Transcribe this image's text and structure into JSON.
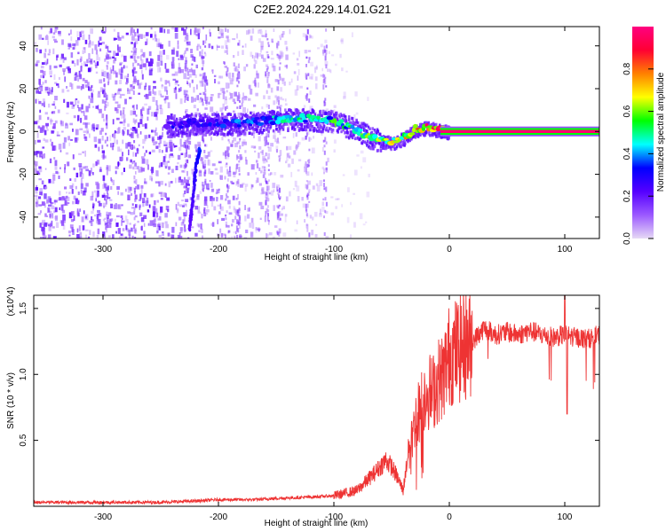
{
  "figure": {
    "title": "C2E2.2024.229.14.01.G21"
  },
  "chart_data": [
    {
      "type": "heatmap",
      "title": "C2E2.2024.229.14.01.G21",
      "xlabel": "Height of straight line (km)",
      "ylabel": "Frequency (Hz)",
      "xlim": [
        -360,
        130
      ],
      "ylim": [
        -50,
        49
      ],
      "x_ticks": [
        -300,
        -200,
        -100,
        0,
        100
      ],
      "y_ticks": [
        -40,
        -20,
        0,
        20,
        40
      ],
      "colorbar": {
        "label": "Normalized spectral amplitude",
        "range": [
          0,
          1
        ],
        "ticks": [
          "0.0",
          "0.2",
          "0.4",
          "0.6",
          "0.8"
        ],
        "tick_values": [
          0,
          0.2,
          0.4,
          0.6,
          0.8
        ],
        "colormap": [
          "#e6d9f5",
          "#9b59ff",
          "#5500ff",
          "#0000ff",
          "#00ffff",
          "#00ff00",
          "#ffff00",
          "#ff8000",
          "#ff0033",
          "#ff0080"
        ]
      },
      "noise_region_x": [
        -360,
        -100
      ],
      "signal_track": {
        "x": [
          -240,
          -220,
          -200,
          -180,
          -160,
          -140,
          -120,
          -100,
          -90,
          -80,
          -70,
          -60,
          -50,
          -40,
          -30,
          -20,
          -10,
          0,
          20,
          50,
          100,
          130
        ],
        "freq": [
          3,
          4,
          4,
          4,
          5,
          6,
          6,
          5,
          3,
          1,
          -2,
          -4,
          -5,
          -3,
          1,
          2,
          1,
          0,
          0,
          0,
          0,
          0
        ],
        "amplitude": [
          0.3,
          0.3,
          0.35,
          0.4,
          0.45,
          0.5,
          0.5,
          0.55,
          0.55,
          0.55,
          0.6,
          0.6,
          0.65,
          0.7,
          0.85,
          0.9,
          0.95,
          0.98,
          0.98,
          0.98,
          0.98,
          0.98
        ]
      },
      "descending_branch": {
        "x": [
          -225,
          -222,
          -219,
          -216
        ],
        "freq": [
          -46,
          -30,
          -15,
          -8
        ]
      }
    },
    {
      "type": "line",
      "xlabel": "Height of straight line (km)",
      "ylabel": "SNR (10 * v/v)",
      "y_multiplier": "(x10^4)",
      "xlim": [
        -360,
        130
      ],
      "ylim": [
        0,
        1.6
      ],
      "x_ticks": [
        -300,
        -200,
        -100,
        0,
        100
      ],
      "y_ticks": [
        0.5,
        1.0,
        1.5
      ],
      "y_tick_labels": [
        "0.5",
        "1.0",
        "1.5"
      ],
      "color": "#ee3333",
      "series": [
        {
          "x": [
            -360,
            -300,
            -250,
            -220,
            -200,
            -170,
            -150,
            -120,
            -100,
            -80,
            -65,
            -55,
            -50,
            -45,
            -40,
            -35,
            -30,
            -25,
            -20,
            -15,
            -10,
            -5,
            0,
            10,
            20,
            30,
            40,
            50,
            60,
            70,
            80,
            90,
            100,
            110,
            120,
            130
          ],
          "y": [
            0.03,
            0.03,
            0.03,
            0.04,
            0.05,
            0.05,
            0.06,
            0.07,
            0.08,
            0.12,
            0.25,
            0.35,
            0.3,
            0.22,
            0.12,
            0.45,
            0.65,
            0.75,
            0.9,
            0.85,
            0.95,
            1.0,
            1.15,
            1.2,
            1.25,
            1.35,
            1.3,
            1.32,
            1.3,
            1.33,
            1.3,
            1.28,
            1.3,
            1.28,
            1.27,
            1.3
          ]
        }
      ]
    }
  ]
}
